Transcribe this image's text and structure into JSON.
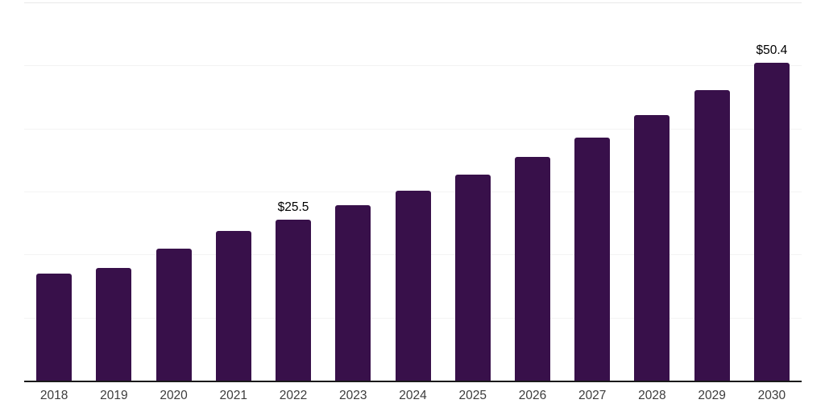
{
  "chart_data": {
    "type": "bar",
    "title": "",
    "xlabel": "",
    "ylabel": "",
    "categories": [
      "2018",
      "2019",
      "2020",
      "2021",
      "2022",
      "2023",
      "2024",
      "2025",
      "2026",
      "2027",
      "2028",
      "2029",
      "2030"
    ],
    "values": [
      17.0,
      17.9,
      21.0,
      23.7,
      25.5,
      27.8,
      30.1,
      32.7,
      35.5,
      38.6,
      42.1,
      46.1,
      50.4
    ],
    "data_labels": [
      "",
      "",
      "",
      "",
      "$25.5",
      "",
      "",
      "",
      "",
      "",
      "",
      "",
      "$50.4"
    ],
    "ylim": [
      0,
      60
    ],
    "grid_step": 10,
    "grid": "horizontal-only",
    "legend_position": "none",
    "y_tick_labels_visible": false,
    "colors": {
      "bar": "#38104A",
      "axis_line": "#1a1a1a",
      "gridline": "#f3f3f3",
      "top_gridline": "#e9e9e9",
      "tick_label": "#3c3c3c",
      "data_label": "#000000",
      "background": "#ffffff"
    }
  }
}
